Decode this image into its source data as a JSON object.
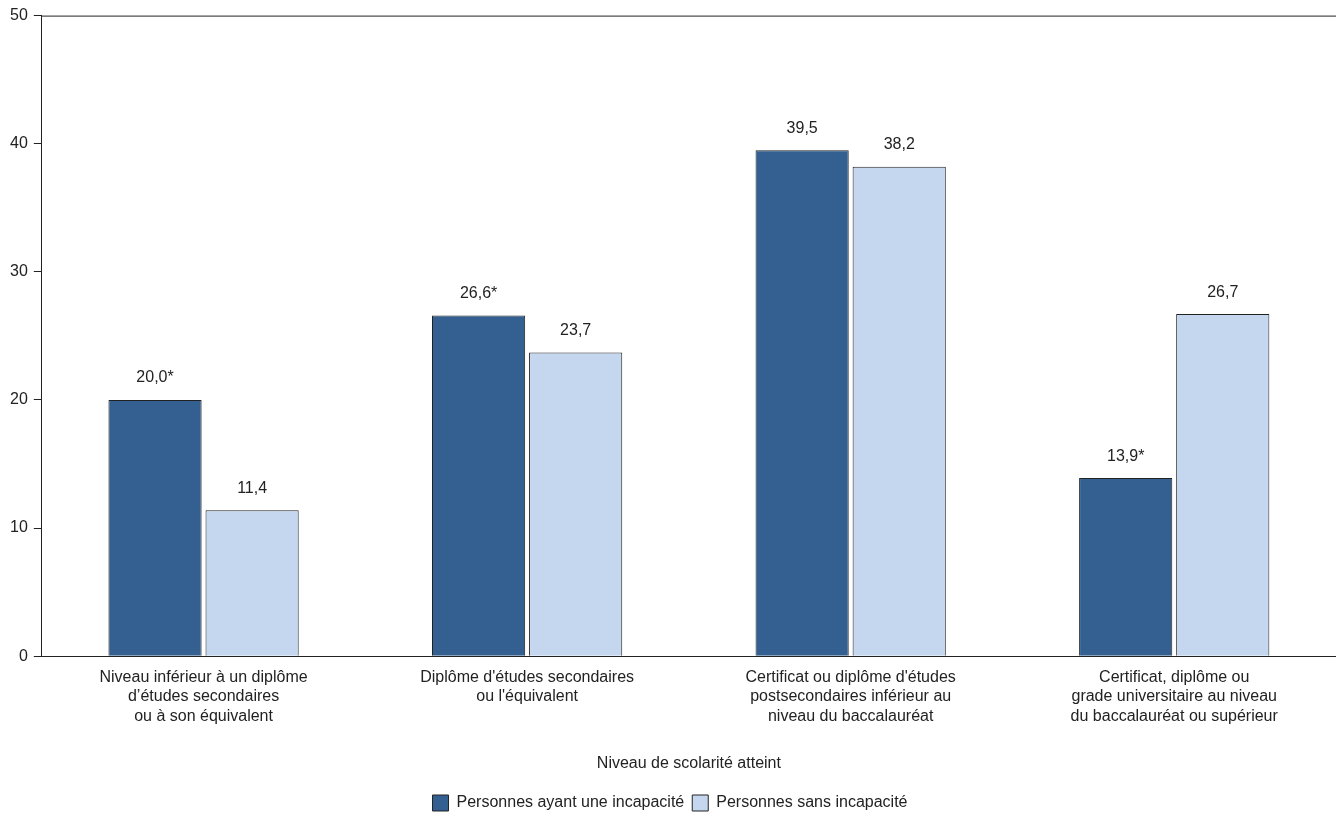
{
  "chart_data": {
    "type": "bar",
    "xlabel": "Niveau de scolarité atteint",
    "categories": [
      "Niveau inférieur à un diplôme\nd’études secondaires\nou à son équivalent",
      "Diplôme d'études secondaires\nou l'équivalent",
      "Certificat ou diplôme d'études\npostsecondaires inférieur au\nniveau du baccalauréat",
      "Certificat, diplôme ou\ngrade universitaire au niveau\ndu baccalauréat ou supérieur"
    ],
    "series": [
      {
        "name": "Personnes ayant une incapacité",
        "color": "#335f91",
        "values": [
          20.0,
          26.6,
          39.5,
          13.9
        ],
        "value_labels": [
          "20,0*",
          "26,6*",
          "39,5",
          "13,9*"
        ]
      },
      {
        "name": "Personnes sans incapacité",
        "color": "#c5d7ef",
        "values": [
          11.4,
          23.7,
          38.2,
          26.7
        ],
        "value_labels": [
          "11,4",
          "23,7",
          "38,2",
          "26,7"
        ]
      }
    ],
    "ylim": [
      0,
      50
    ],
    "yticks": [
      0,
      10,
      20,
      30,
      40,
      50
    ],
    "grid": false,
    "legend": "bottom"
  }
}
